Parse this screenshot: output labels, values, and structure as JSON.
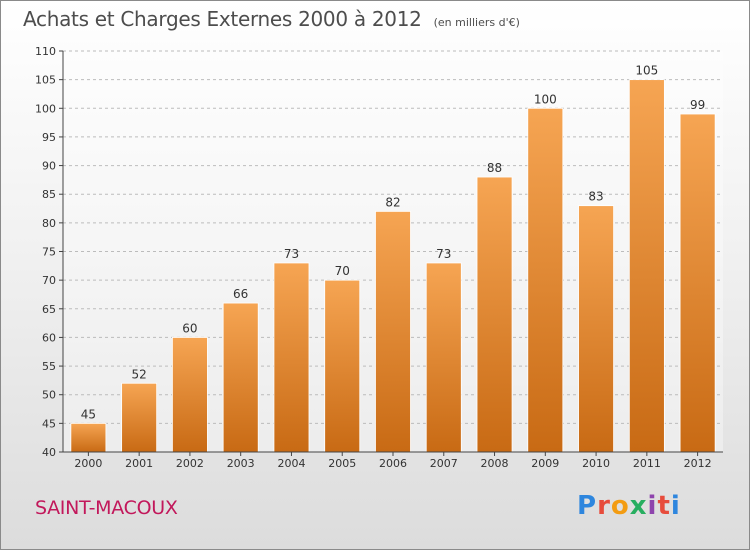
{
  "chart_data": {
    "type": "bar",
    "title": "Achats et Charges Externes 2000 à 2012",
    "subtitle": "(en milliers d'€)",
    "categories": [
      "2000",
      "2001",
      "2002",
      "2003",
      "2004",
      "2005",
      "2006",
      "2007",
      "2008",
      "2009",
      "2010",
      "2011",
      "2012"
    ],
    "values": [
      45,
      52,
      60,
      66,
      73,
      70,
      82,
      73,
      88,
      100,
      83,
      105,
      99
    ],
    "ylim": [
      40,
      110
    ],
    "yticks": [
      40,
      45,
      50,
      55,
      60,
      65,
      70,
      75,
      80,
      85,
      90,
      95,
      100,
      105,
      110
    ],
    "grid": true,
    "bar_color": "#e8862f",
    "bar_color_light": "#f6a553",
    "bar_color_dark": "#c86a14"
  },
  "footer": {
    "location": "SAINT-MACOUX",
    "location_color": "#c2185b",
    "brand_letters": [
      {
        "ch": "P",
        "color": "#2e86de"
      },
      {
        "ch": "r",
        "color": "#e74c3c"
      },
      {
        "ch": "o",
        "color": "#f39c12"
      },
      {
        "ch": "x",
        "color": "#27ae60"
      },
      {
        "ch": "i",
        "color": "#8e44ad"
      },
      {
        "ch": "t",
        "color": "#e74c3c"
      },
      {
        "ch": "i",
        "color": "#2e86de"
      }
    ]
  }
}
